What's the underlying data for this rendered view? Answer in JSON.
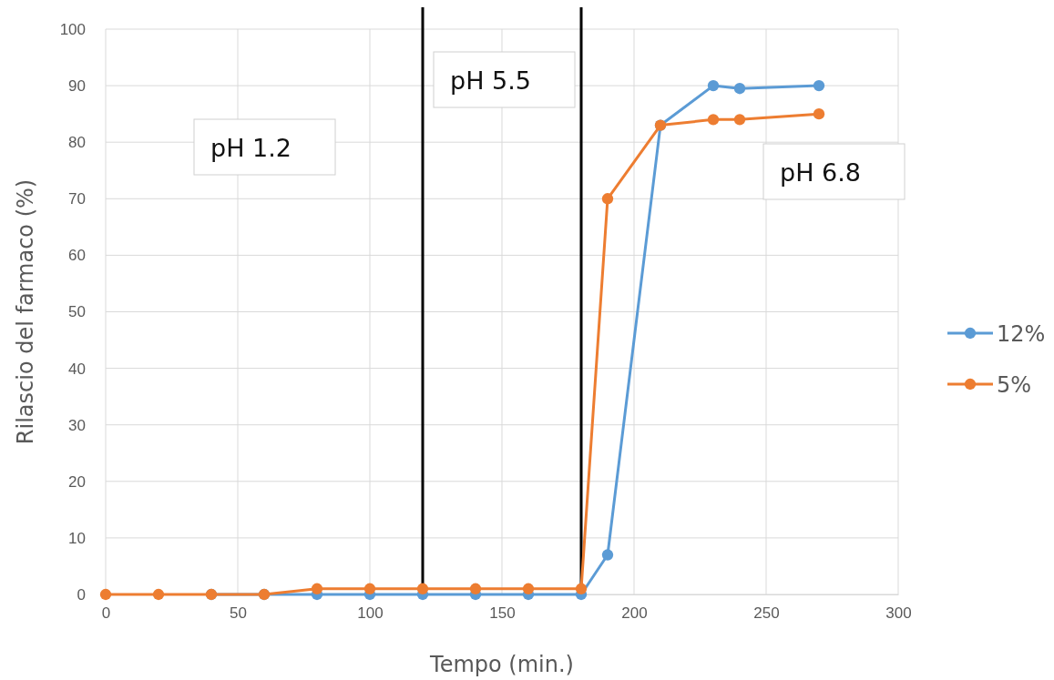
{
  "chart_data": {
    "type": "line",
    "xlabel": "Tempo (min.)",
    "ylabel": "Rilascio del farmaco (%)",
    "x": [
      0,
      20,
      40,
      60,
      80,
      100,
      120,
      140,
      160,
      180,
      190,
      210,
      230,
      240,
      270
    ],
    "series": [
      {
        "name": "12%",
        "color": "#5b9bd5",
        "values": [
          null,
          null,
          0,
          0,
          0,
          0,
          0,
          0,
          0,
          0,
          7,
          83,
          90,
          89.5,
          90
        ]
      },
      {
        "name": "5%",
        "color": "#ed7d31",
        "values": [
          0,
          0,
          0,
          0,
          1,
          1,
          1,
          1,
          1,
          1,
          70,
          83,
          84,
          84,
          85
        ]
      }
    ],
    "xlim": [
      0,
      300
    ],
    "xticks": [
      0,
      50,
      100,
      150,
      200,
      250,
      300
    ],
    "ylim": [
      0,
      100
    ],
    "yticks": [
      0,
      10,
      20,
      30,
      40,
      50,
      60,
      70,
      80,
      90,
      100
    ],
    "grid": true,
    "legend": "right",
    "marker": "circle",
    "line_style": "solid",
    "ref_lines": [
      {
        "axis": "x",
        "value": 120,
        "color": "#000000"
      },
      {
        "axis": "x",
        "value": 180,
        "color": "#000000"
      }
    ],
    "annotations": [
      "pH 1.2",
      "pH 5.5",
      "pH 6.8"
    ]
  }
}
